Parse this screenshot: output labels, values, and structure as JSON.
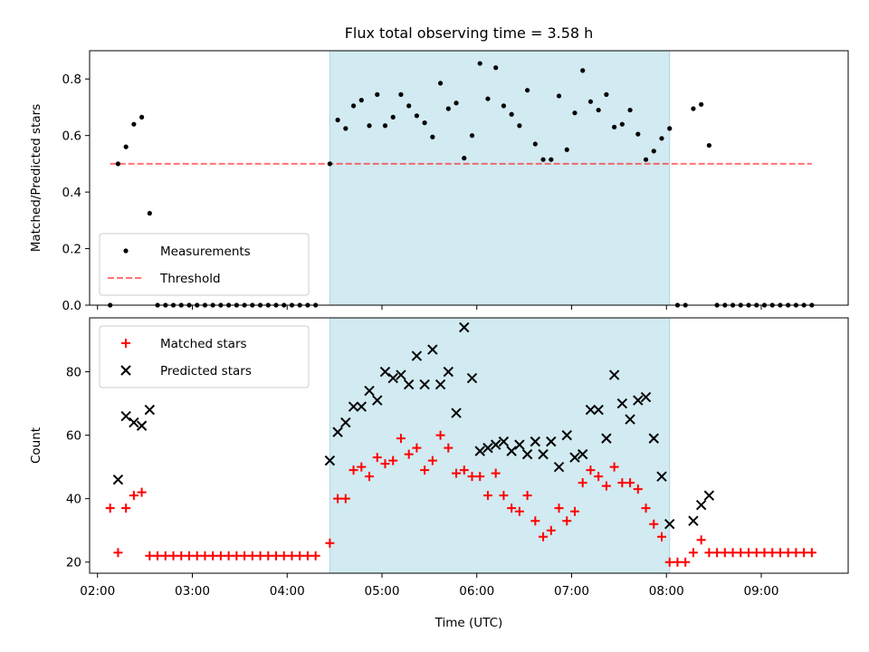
{
  "chart_data": [
    {
      "type": "scatter",
      "panel": "top",
      "title": "Flux total observing time = 3.58 h",
      "xlabel": "",
      "ylabel": "Matched/Predicted stars",
      "ylim": [
        0,
        0.9
      ],
      "yticks": [
        0.0,
        0.2,
        0.4,
        0.6,
        0.8
      ],
      "ytick_labels": [
        "0.0",
        "0.2",
        "0.4",
        "0.6",
        "0.8"
      ],
      "grid": false,
      "legend_position": "lower-left",
      "highlight_window": {
        "start": "04:27",
        "end": "08:02",
        "color": "#add8e6"
      },
      "threshold": {
        "name": "Threshold",
        "value": 0.5,
        "x_start": "02:08",
        "x_end": "09:32",
        "color": "#ff0000"
      },
      "series": [
        {
          "name": "Measurements",
          "color": "#000000",
          "marker": "dot",
          "points": [
            [
              "02:08",
              0
            ],
            [
              "02:13",
              0.5
            ],
            [
              "02:18",
              0.56
            ],
            [
              "02:23",
              0.64
            ],
            [
              "02:28",
              0.665
            ],
            [
              "02:33",
              0.325
            ],
            [
              "02:38",
              0
            ],
            [
              "02:43",
              0
            ],
            [
              "02:48",
              0
            ],
            [
              "02:53",
              0
            ],
            [
              "02:58",
              0
            ],
            [
              "03:03",
              0
            ],
            [
              "03:08",
              0
            ],
            [
              "03:13",
              0
            ],
            [
              "03:18",
              0
            ],
            [
              "03:23",
              0
            ],
            [
              "03:28",
              0
            ],
            [
              "03:33",
              0
            ],
            [
              "03:38",
              0
            ],
            [
              "03:43",
              0
            ],
            [
              "03:48",
              0
            ],
            [
              "03:53",
              0
            ],
            [
              "03:58",
              0
            ],
            [
              "04:03",
              0
            ],
            [
              "04:08",
              0
            ],
            [
              "04:13",
              0
            ],
            [
              "04:18",
              0
            ],
            [
              "04:27",
              0.5
            ],
            [
              "04:32",
              0.655
            ],
            [
              "04:37",
              0.625
            ],
            [
              "04:42",
              0.705
            ],
            [
              "04:47",
              0.725
            ],
            [
              "04:52",
              0.635
            ],
            [
              "04:57",
              0.745
            ],
            [
              "05:02",
              0.635
            ],
            [
              "05:07",
              0.665
            ],
            [
              "05:12",
              0.745
            ],
            [
              "05:17",
              0.705
            ],
            [
              "05:22",
              0.67
            ],
            [
              "05:27",
              0.645
            ],
            [
              "05:32",
              0.595
            ],
            [
              "05:37",
              0.785
            ],
            [
              "05:42",
              0.695
            ],
            [
              "05:47",
              0.715
            ],
            [
              "05:52",
              0.52
            ],
            [
              "05:57",
              0.6
            ],
            [
              "06:02",
              0.855
            ],
            [
              "06:07",
              0.73
            ],
            [
              "06:12",
              0.84
            ],
            [
              "06:17",
              0.705
            ],
            [
              "06:22",
              0.675
            ],
            [
              "06:27",
              0.635
            ],
            [
              "06:32",
              0.76
            ],
            [
              "06:37",
              0.57
            ],
            [
              "06:42",
              0.515
            ],
            [
              "06:47",
              0.515
            ],
            [
              "06:52",
              0.74
            ],
            [
              "06:57",
              0.55
            ],
            [
              "07:02",
              0.68
            ],
            [
              "07:07",
              0.83
            ],
            [
              "07:12",
              0.72
            ],
            [
              "07:17",
              0.69
            ],
            [
              "07:22",
              0.745
            ],
            [
              "07:27",
              0.63
            ],
            [
              "07:32",
              0.64
            ],
            [
              "07:37",
              0.69
            ],
            [
              "07:42",
              0.605
            ],
            [
              "07:47",
              0.515
            ],
            [
              "07:52",
              0.545
            ],
            [
              "07:57",
              0.59
            ],
            [
              "08:02",
              0.625
            ],
            [
              "08:07",
              0
            ],
            [
              "08:12",
              0
            ],
            [
              "08:17",
              0.695
            ],
            [
              "08:22",
              0.71
            ],
            [
              "08:27",
              0.565
            ],
            [
              "08:32",
              0
            ],
            [
              "08:37",
              0
            ],
            [
              "08:42",
              0
            ],
            [
              "08:47",
              0
            ],
            [
              "08:52",
              0
            ],
            [
              "08:57",
              0
            ],
            [
              "09:02",
              0
            ],
            [
              "09:07",
              0
            ],
            [
              "09:12",
              0
            ],
            [
              "09:17",
              0
            ],
            [
              "09:22",
              0
            ],
            [
              "09:27",
              0
            ],
            [
              "09:32",
              0
            ]
          ]
        }
      ]
    },
    {
      "type": "scatter",
      "panel": "bottom",
      "title": "",
      "xlabel": "Time (UTC)",
      "ylabel": "Count",
      "xlim": [
        "01:55",
        "09:55"
      ],
      "xticks": [
        "02:00",
        "03:00",
        "04:00",
        "05:00",
        "06:00",
        "07:00",
        "08:00",
        "09:00"
      ],
      "xtick_labels": [
        "02:00",
        "03:00",
        "04:00",
        "05:00",
        "06:00",
        "07:00",
        "08:00",
        "09:00"
      ],
      "ylim": [
        16.5,
        97
      ],
      "yticks": [
        20,
        40,
        60,
        80
      ],
      "ytick_labels": [
        "20",
        "40",
        "60",
        "80"
      ],
      "grid": false,
      "legend_position": "upper-left",
      "highlight_window": {
        "start": "04:27",
        "end": "08:02",
        "color": "#add8e6"
      },
      "series": [
        {
          "name": "Matched stars",
          "color": "#ff0000",
          "marker": "plus",
          "points": [
            [
              "02:08",
              37
            ],
            [
              "02:13",
              23
            ],
            [
              "02:18",
              37
            ],
            [
              "02:23",
              41
            ],
            [
              "02:28",
              42
            ],
            [
              "02:33",
              22
            ],
            [
              "02:38",
              22
            ],
            [
              "02:43",
              22
            ],
            [
              "02:48",
              22
            ],
            [
              "02:53",
              22
            ],
            [
              "02:58",
              22
            ],
            [
              "03:03",
              22
            ],
            [
              "03:08",
              22
            ],
            [
              "03:13",
              22
            ],
            [
              "03:18",
              22
            ],
            [
              "03:23",
              22
            ],
            [
              "03:28",
              22
            ],
            [
              "03:33",
              22
            ],
            [
              "03:38",
              22
            ],
            [
              "03:43",
              22
            ],
            [
              "03:48",
              22
            ],
            [
              "03:53",
              22
            ],
            [
              "03:58",
              22
            ],
            [
              "04:03",
              22
            ],
            [
              "04:08",
              22
            ],
            [
              "04:13",
              22
            ],
            [
              "04:18",
              22
            ],
            [
              "04:27",
              26
            ],
            [
              "04:32",
              40
            ],
            [
              "04:37",
              40
            ],
            [
              "04:42",
              49
            ],
            [
              "04:47",
              50
            ],
            [
              "04:52",
              47
            ],
            [
              "04:57",
              53
            ],
            [
              "05:02",
              51
            ],
            [
              "05:07",
              52
            ],
            [
              "05:12",
              59
            ],
            [
              "05:17",
              54
            ],
            [
              "05:22",
              56
            ],
            [
              "05:27",
              49
            ],
            [
              "05:32",
              52
            ],
            [
              "05:37",
              60
            ],
            [
              "05:42",
              56
            ],
            [
              "05:47",
              48
            ],
            [
              "05:52",
              49
            ],
            [
              "05:57",
              47
            ],
            [
              "06:02",
              47
            ],
            [
              "06:07",
              41
            ],
            [
              "06:12",
              48
            ],
            [
              "06:17",
              41
            ],
            [
              "06:22",
              37
            ],
            [
              "06:27",
              36
            ],
            [
              "06:32",
              41
            ],
            [
              "06:37",
              33
            ],
            [
              "06:42",
              28
            ],
            [
              "06:47",
              30
            ],
            [
              "06:52",
              37
            ],
            [
              "06:57",
              33
            ],
            [
              "07:02",
              36
            ],
            [
              "07:07",
              45
            ],
            [
              "07:12",
              49
            ],
            [
              "07:17",
              47
            ],
            [
              "07:22",
              44
            ],
            [
              "07:27",
              50
            ],
            [
              "07:32",
              45
            ],
            [
              "07:37",
              45
            ],
            [
              "07:42",
              43
            ],
            [
              "07:47",
              37
            ],
            [
              "07:52",
              32
            ],
            [
              "07:57",
              28
            ],
            [
              "08:02",
              20
            ],
            [
              "08:07",
              20
            ],
            [
              "08:12",
              20
            ],
            [
              "08:17",
              23
            ],
            [
              "08:22",
              27
            ],
            [
              "08:27",
              23
            ],
            [
              "08:32",
              23
            ],
            [
              "08:37",
              23
            ],
            [
              "08:42",
              23
            ],
            [
              "08:47",
              23
            ],
            [
              "08:52",
              23
            ],
            [
              "08:57",
              23
            ],
            [
              "09:02",
              23
            ],
            [
              "09:07",
              23
            ],
            [
              "09:12",
              23
            ],
            [
              "09:17",
              23
            ],
            [
              "09:22",
              23
            ],
            [
              "09:27",
              23
            ],
            [
              "09:32",
              23
            ]
          ]
        },
        {
          "name": "Predicted stars",
          "color": "#000000",
          "marker": "x",
          "points": [
            [
              "02:13",
              46
            ],
            [
              "02:18",
              66
            ],
            [
              "02:23",
              64
            ],
            [
              "02:28",
              63
            ],
            [
              "02:33",
              68
            ],
            [
              "04:27",
              52
            ],
            [
              "04:32",
              61
            ],
            [
              "04:37",
              64
            ],
            [
              "04:42",
              69
            ],
            [
              "04:47",
              69
            ],
            [
              "04:52",
              74
            ],
            [
              "04:57",
              71
            ],
            [
              "05:02",
              80
            ],
            [
              "05:07",
              78
            ],
            [
              "05:12",
              79
            ],
            [
              "05:17",
              76
            ],
            [
              "05:22",
              85
            ],
            [
              "05:27",
              76
            ],
            [
              "05:32",
              87
            ],
            [
              "05:37",
              76
            ],
            [
              "05:42",
              80
            ],
            [
              "05:47",
              67
            ],
            [
              "05:52",
              94
            ],
            [
              "05:57",
              78
            ],
            [
              "06:02",
              55
            ],
            [
              "06:07",
              56
            ],
            [
              "06:12",
              57
            ],
            [
              "06:17",
              58
            ],
            [
              "06:22",
              55
            ],
            [
              "06:27",
              57
            ],
            [
              "06:32",
              54
            ],
            [
              "06:37",
              58
            ],
            [
              "06:42",
              54
            ],
            [
              "06:47",
              58
            ],
            [
              "06:52",
              50
            ],
            [
              "06:57",
              60
            ],
            [
              "07:02",
              53
            ],
            [
              "07:07",
              54
            ],
            [
              "07:12",
              68
            ],
            [
              "07:17",
              68
            ],
            [
              "07:22",
              59
            ],
            [
              "07:27",
              79
            ],
            [
              "07:32",
              70
            ],
            [
              "07:37",
              65
            ],
            [
              "07:42",
              71
            ],
            [
              "07:47",
              72
            ],
            [
              "07:52",
              59
            ],
            [
              "07:57",
              47
            ],
            [
              "08:02",
              32
            ],
            [
              "08:17",
              33
            ],
            [
              "08:22",
              38
            ],
            [
              "08:27",
              41
            ]
          ]
        }
      ]
    }
  ]
}
